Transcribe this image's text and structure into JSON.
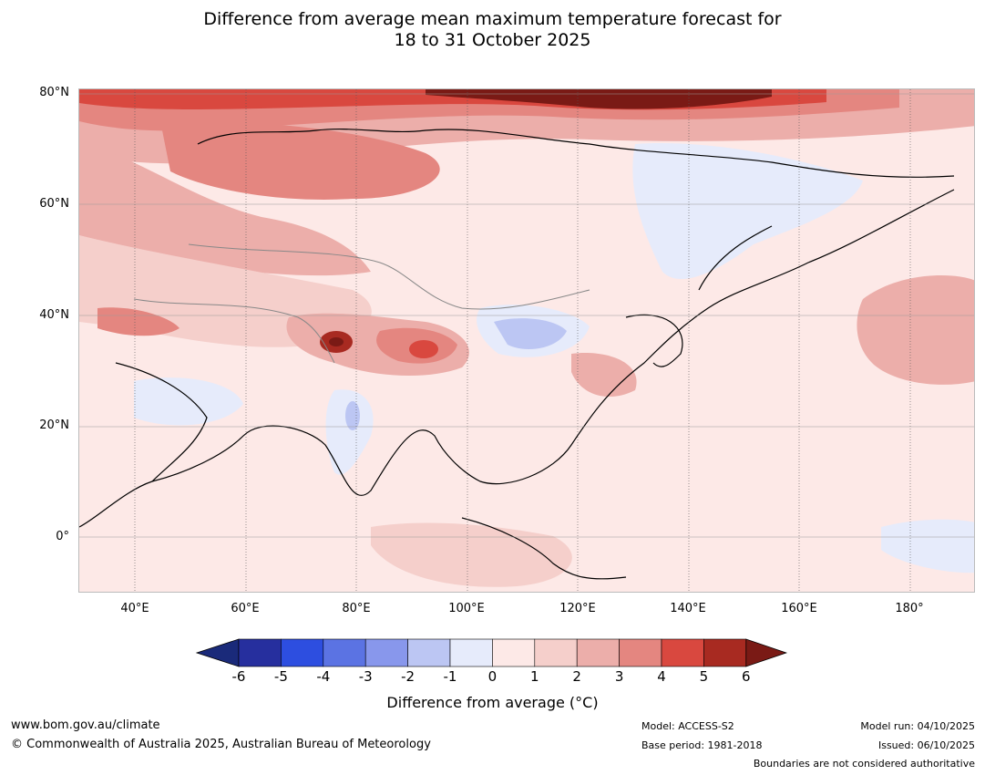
{
  "title": {
    "line1": "Difference from average mean maximum temperature forecast for",
    "line2": "18 to 31 October 2025"
  },
  "map": {
    "lat_labels": [
      "80°N",
      "60°N",
      "40°N",
      "20°N",
      "0°"
    ],
    "lon_labels": [
      "40°E",
      "60°E",
      "80°E",
      "100°E",
      "120°E",
      "140°E",
      "160°E",
      "180°"
    ]
  },
  "colorbar": {
    "title": "Difference from average (°C)",
    "ticks": [
      "-6",
      "-5",
      "-4",
      "-3",
      "-2",
      "-1",
      "0",
      "1",
      "2",
      "3",
      "4",
      "5",
      "6"
    ],
    "colors": [
      "#262f9e",
      "#2d4ee0",
      "#5b73e3",
      "#8897ec",
      "#bcc6f3",
      "#e6ebfb",
      "#fde9e7",
      "#f5cfcb",
      "#ecaeaa",
      "#e48680",
      "#d9483f",
      "#a82a21"
    ],
    "under_color": "#1a2a7a",
    "over_color": "#7a1a15"
  },
  "footer": {
    "website": "www.bom.gov.au/climate",
    "copyright": "© Commonwealth of Australia 2025, Australian Bureau of Meteorology",
    "model": "Model: ACCESS-S2",
    "base_period": "Base period: 1981-2018",
    "model_run": "Model run: 04/10/2025",
    "issued": "Issued: 06/10/2025",
    "disclaimer": "Boundaries are not considered authoritative"
  }
}
